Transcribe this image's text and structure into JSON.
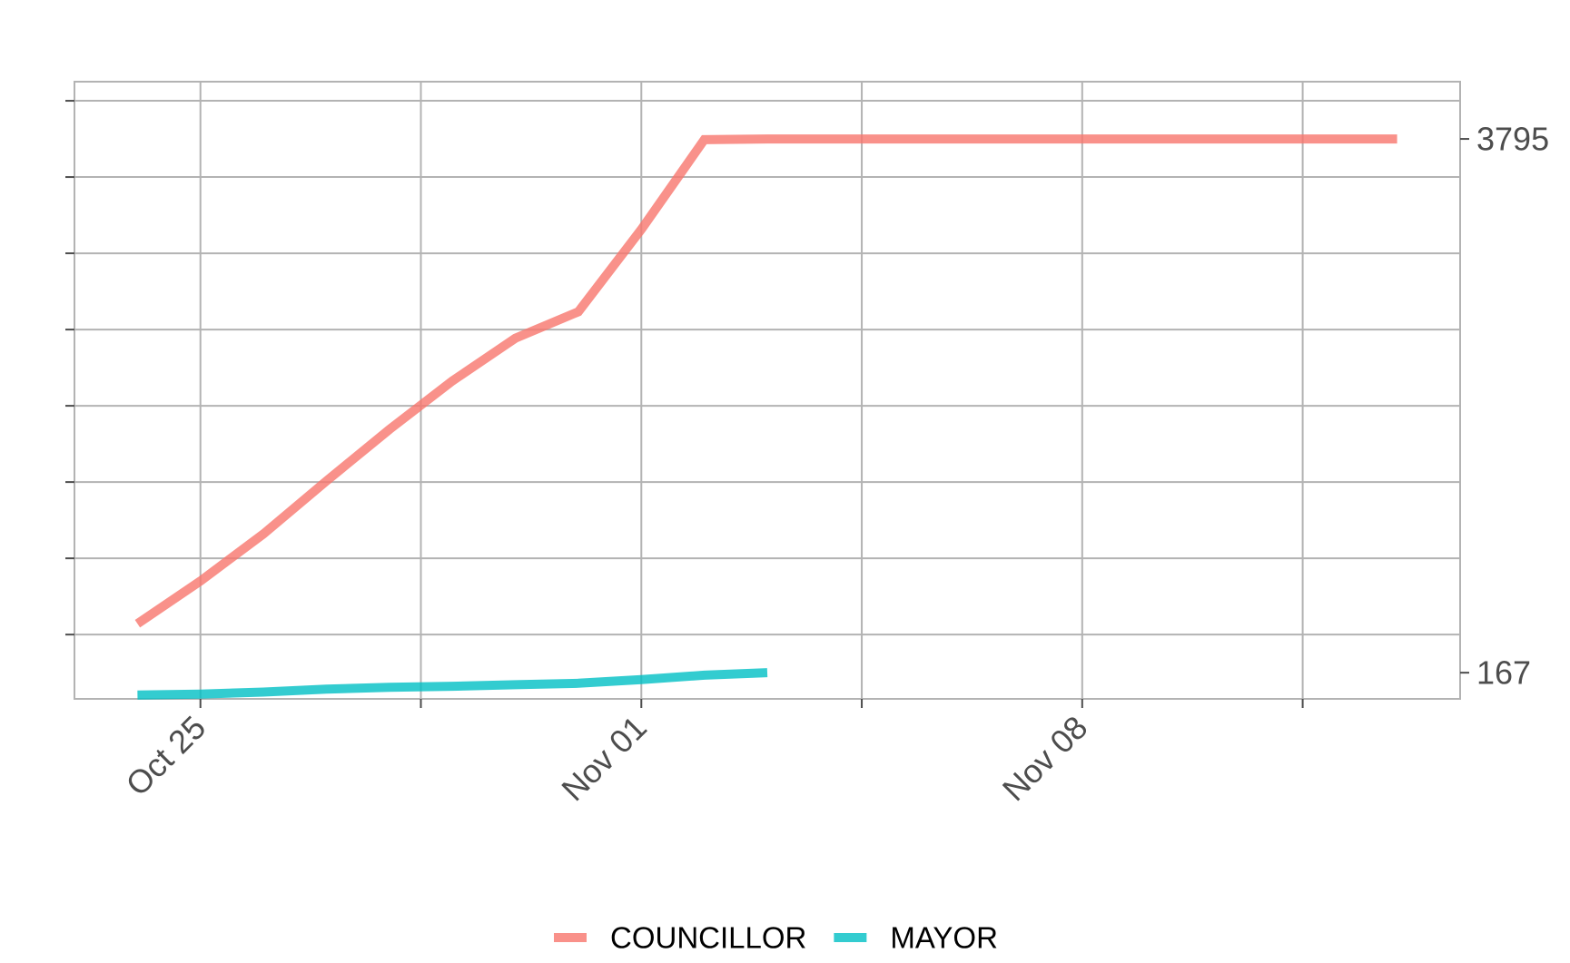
{
  "chart_data": {
    "type": "line",
    "title": "",
    "xlabel": "",
    "ylabel": "",
    "x_ticks": [
      {
        "label": "Oct 25",
        "date": "2022-10-25"
      },
      {
        "label": "Nov 01",
        "date": "2022-11-01"
      },
      {
        "label": "Nov 08",
        "date": "2022-11-08"
      }
    ],
    "y_ticks": [
      {
        "label": "167",
        "value": 167
      },
      {
        "label": "3795",
        "value": 3795
      }
    ],
    "xlim": [
      "2022-10-23",
      "2022-11-14"
    ],
    "ylim": [
      -11,
      4184
    ],
    "y_axis_position": "right",
    "grid": true,
    "legend_position": "bottom",
    "series": [
      {
        "name": "COUNCILLOR",
        "color": "#F8766D",
        "points": [
          {
            "x": "2022-10-24",
            "y": 500
          },
          {
            "x": "2022-10-25",
            "y": 790
          },
          {
            "x": "2022-10-26",
            "y": 1110
          },
          {
            "x": "2022-10-27",
            "y": 1470
          },
          {
            "x": "2022-10-28",
            "y": 1820
          },
          {
            "x": "2022-10-29",
            "y": 2150
          },
          {
            "x": "2022-10-30",
            "y": 2440
          },
          {
            "x": "2022-10-31",
            "y": 2620
          },
          {
            "x": "2022-11-01",
            "y": 3180
          },
          {
            "x": "2022-11-02",
            "y": 3790
          },
          {
            "x": "2022-11-03",
            "y": 3795
          },
          {
            "x": "2022-11-08",
            "y": 3795
          },
          {
            "x": "2022-11-13",
            "y": 3795
          }
        ]
      },
      {
        "name": "MAYOR",
        "color": "#00BFC4",
        "points": [
          {
            "x": "2022-10-24",
            "y": 15
          },
          {
            "x": "2022-10-25",
            "y": 22
          },
          {
            "x": "2022-10-26",
            "y": 35
          },
          {
            "x": "2022-10-27",
            "y": 55
          },
          {
            "x": "2022-10-28",
            "y": 68
          },
          {
            "x": "2022-10-29",
            "y": 75
          },
          {
            "x": "2022-10-30",
            "y": 85
          },
          {
            "x": "2022-10-31",
            "y": 95
          },
          {
            "x": "2022-11-01",
            "y": 120
          },
          {
            "x": "2022-11-02",
            "y": 150
          },
          {
            "x": "2022-11-03",
            "y": 167
          }
        ]
      }
    ]
  }
}
